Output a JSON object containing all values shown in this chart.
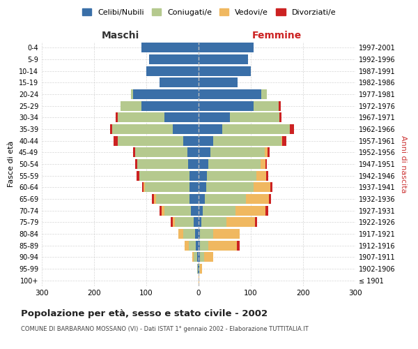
{
  "age_groups": [
    "100+",
    "95-99",
    "90-94",
    "85-89",
    "80-84",
    "75-79",
    "70-74",
    "65-69",
    "60-64",
    "55-59",
    "50-54",
    "45-49",
    "40-44",
    "35-39",
    "30-34",
    "25-29",
    "20-24",
    "15-19",
    "10-14",
    "5-9",
    "0-4"
  ],
  "birth_years": [
    "≤ 1901",
    "1902-1906",
    "1907-1911",
    "1912-1916",
    "1917-1921",
    "1922-1926",
    "1927-1931",
    "1932-1936",
    "1937-1941",
    "1942-1946",
    "1947-1951",
    "1952-1956",
    "1957-1961",
    "1962-1966",
    "1967-1971",
    "1972-1976",
    "1977-1981",
    "1982-1986",
    "1987-1991",
    "1992-1996",
    "1997-2001"
  ],
  "male_celibi": [
    0,
    1,
    3,
    5,
    7,
    10,
    15,
    17,
    18,
    18,
    20,
    22,
    30,
    50,
    65,
    110,
    125,
    75,
    100,
    95,
    110
  ],
  "male_coniugati": [
    0,
    2,
    6,
    14,
    22,
    35,
    50,
    65,
    85,
    95,
    98,
    100,
    125,
    115,
    90,
    40,
    5,
    0,
    0,
    0,
    0
  ],
  "male_vedovi": [
    0,
    0,
    3,
    8,
    10,
    5,
    6,
    4,
    2,
    1,
    0,
    0,
    0,
    0,
    0,
    0,
    0,
    0,
    0,
    0,
    0
  ],
  "male_divorziati": [
    0,
    0,
    0,
    0,
    0,
    3,
    4,
    4,
    3,
    5,
    4,
    4,
    8,
    4,
    4,
    0,
    0,
    0,
    0,
    0,
    0
  ],
  "female_celibi": [
    0,
    1,
    2,
    3,
    3,
    5,
    8,
    12,
    15,
    16,
    18,
    22,
    28,
    45,
    60,
    105,
    120,
    75,
    100,
    95,
    105
  ],
  "female_coniugati": [
    0,
    2,
    8,
    15,
    25,
    48,
    62,
    78,
    90,
    95,
    100,
    105,
    130,
    130,
    95,
    48,
    10,
    0,
    0,
    0,
    0
  ],
  "female_vedovi": [
    1,
    4,
    18,
    55,
    50,
    55,
    58,
    45,
    32,
    18,
    10,
    5,
    2,
    0,
    0,
    0,
    0,
    0,
    0,
    0,
    0
  ],
  "female_divorziati": [
    0,
    0,
    0,
    5,
    0,
    4,
    5,
    4,
    4,
    4,
    2,
    4,
    8,
    8,
    4,
    4,
    0,
    0,
    0,
    0,
    0
  ],
  "color_celibi": "#3a6fa8",
  "color_coniugati": "#b5c98e",
  "color_vedovi": "#f0b860",
  "color_divorziati": "#cc2222",
  "title": "Popolazione per età, sesso e stato civile - 2002",
  "subtitle": "COMUNE DI BARBARANO MOSSANO (VI) - Dati ISTAT 1° gennaio 2002 - Elaborazione TUTTITALIA.IT",
  "xlabel_left": "Maschi",
  "xlabel_right": "Femmine",
  "ylabel_left": "Fasce di età",
  "ylabel_right": "Anni di nascita",
  "xlim": 300,
  "bg_color": "#f5f5f5",
  "plot_bg_color": "#ffffff"
}
